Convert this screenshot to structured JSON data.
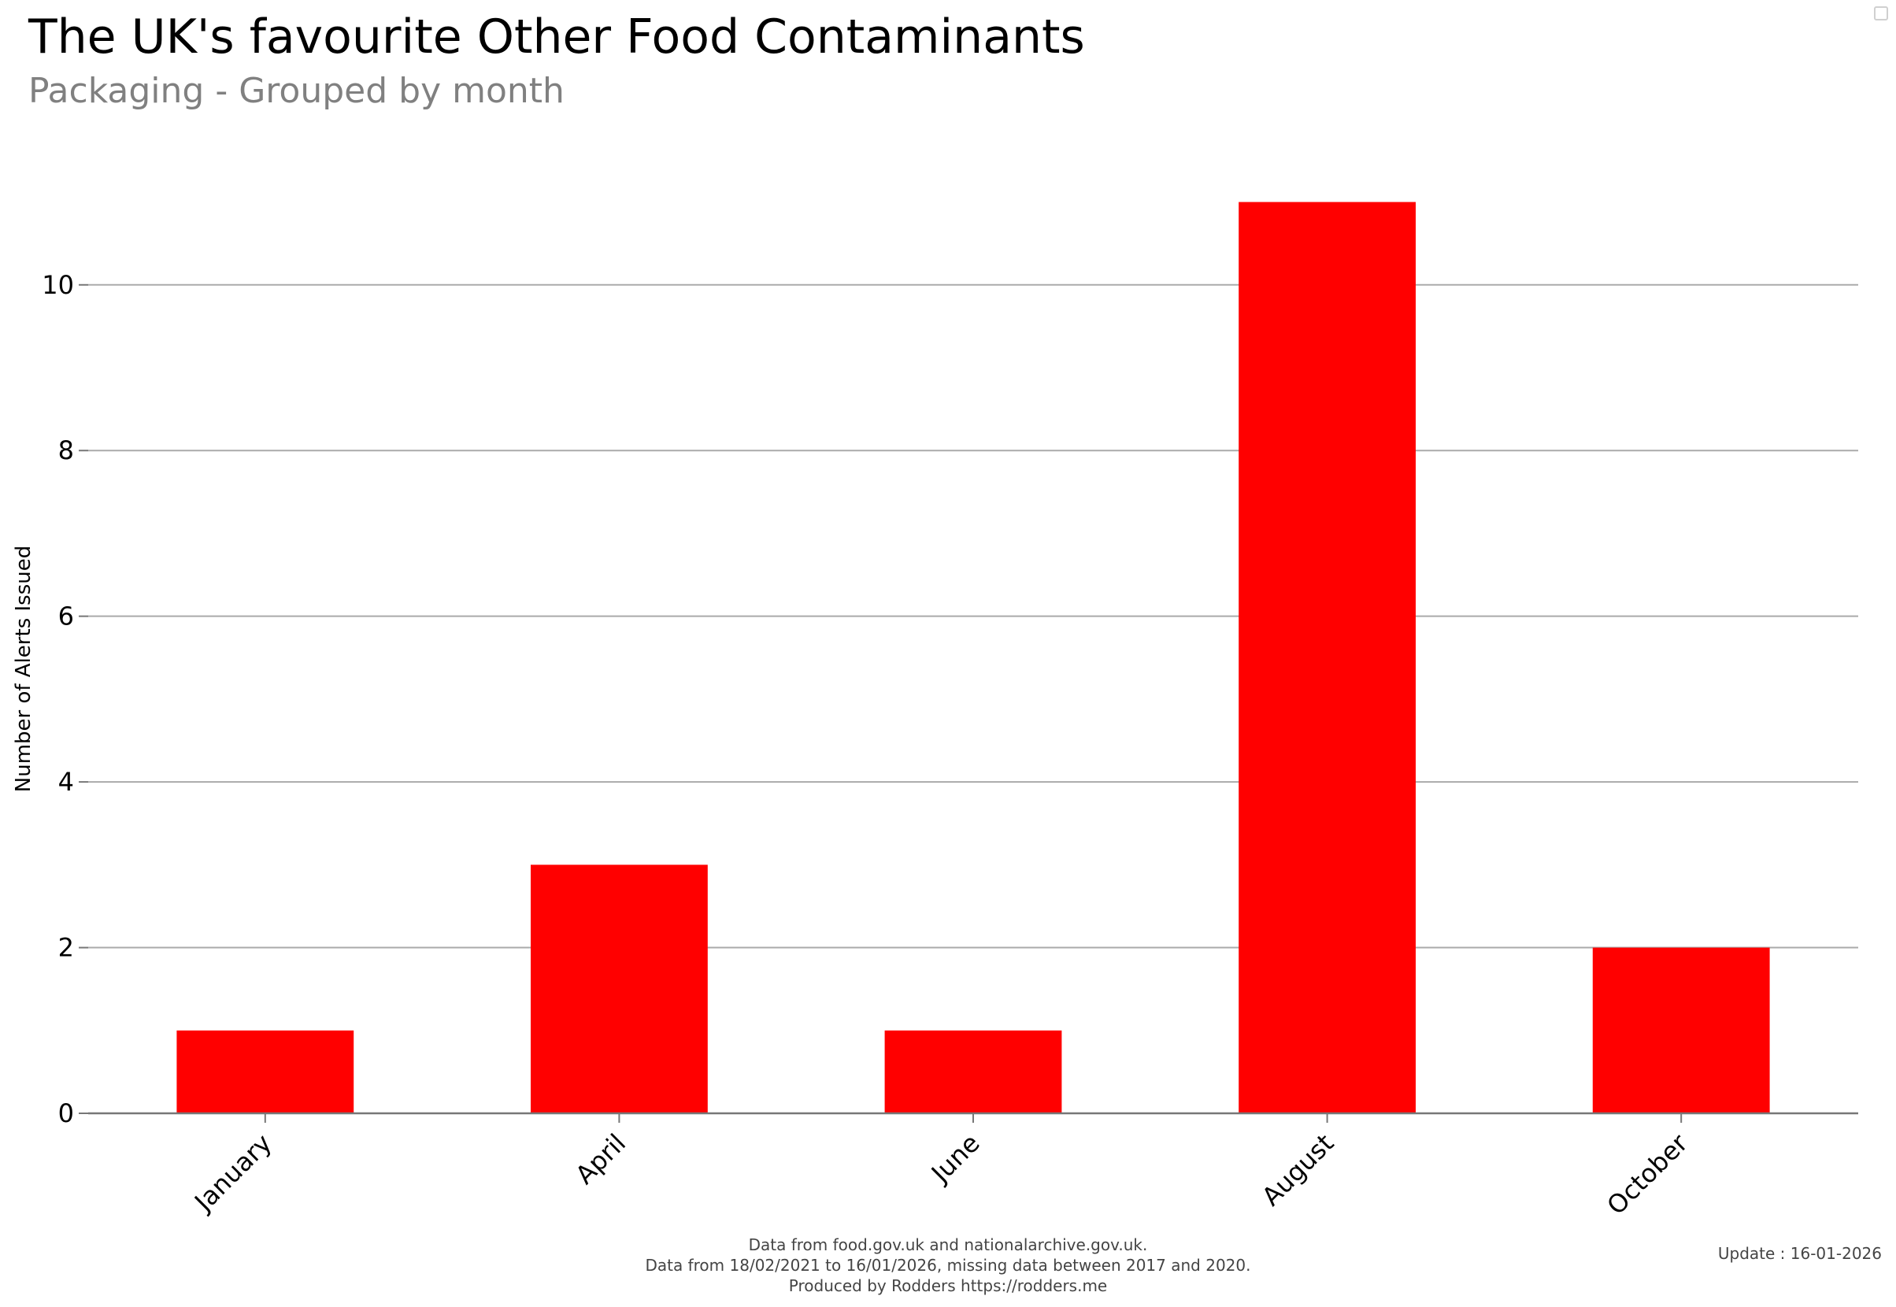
{
  "header": {
    "title": "The UK's favourite Other Food Contaminants",
    "subtitle": "Packaging - Grouped by month"
  },
  "footer": {
    "line1": "Data from food.gov.uk and nationalarchive.gov.uk.",
    "line2": "Data from 18/02/2021 to 16/01/2026, missing data between 2017 and 2020.",
    "line3": "Produced by Rodders https://rodders.me",
    "update": "Update : 16-01-2026"
  },
  "colors": {
    "bar": "#ff0000",
    "grid": "#aaaaaa",
    "axis": "#777777",
    "text": "#000000"
  },
  "chart_data": {
    "type": "bar",
    "title": "The UK's favourite Other Food Contaminants",
    "subtitle": "Packaging - Grouped by month",
    "xlabel": "",
    "ylabel": "Number of Alerts Issued",
    "categories": [
      "January",
      "April",
      "June",
      "August",
      "October"
    ],
    "values": [
      1,
      3,
      1,
      11,
      2
    ],
    "ylim": [
      0,
      11.3
    ],
    "yticks": [
      0,
      2,
      4,
      6,
      8,
      10
    ],
    "grid": true,
    "legend": "none"
  }
}
